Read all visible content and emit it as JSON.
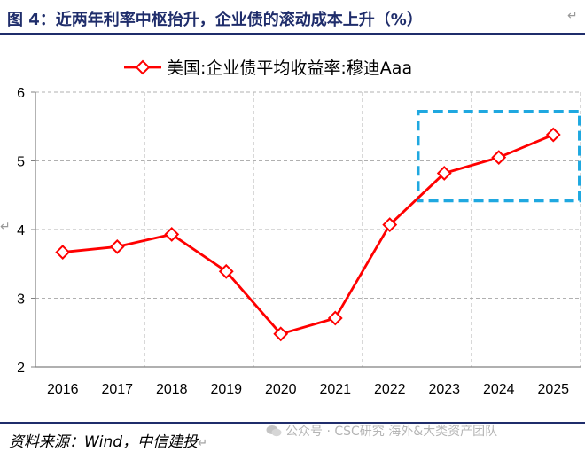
{
  "figure": {
    "title": "图 4：近两年利率中枢抬升，企业债的滚动成本上升（%）",
    "source": "资料来源：Wind，",
    "source_org": "中信建投",
    "watermark": "公众号 · CSC研究 海外&大类资产团队",
    "watermark_icon": "wechat-icon"
  },
  "chart_data": {
    "type": "line",
    "title": "",
    "xlabel": "",
    "ylabel": "",
    "categories": [
      "2016",
      "2017",
      "2018",
      "2019",
      "2020",
      "2021",
      "2022",
      "2023",
      "2024",
      "2025"
    ],
    "series": [
      {
        "name": "美国:企业债平均收益率:穆迪Aaa",
        "values": [
          3.67,
          3.75,
          3.93,
          3.39,
          2.48,
          2.71,
          4.07,
          4.82,
          5.05,
          5.38
        ],
        "color": "#ff0000",
        "marker": "diamond"
      }
    ],
    "ylim": [
      2,
      6
    ],
    "yticks": [
      2,
      3,
      4,
      5,
      6
    ],
    "grid": {
      "vertical": true,
      "horizontal": true,
      "style": "dashed"
    },
    "legend": "top-center",
    "highlight": {
      "x_range": [
        "2023",
        "2025"
      ],
      "y_range": [
        4.42,
        5.72
      ],
      "color": "#1fa8e0",
      "style": "dashed"
    }
  }
}
